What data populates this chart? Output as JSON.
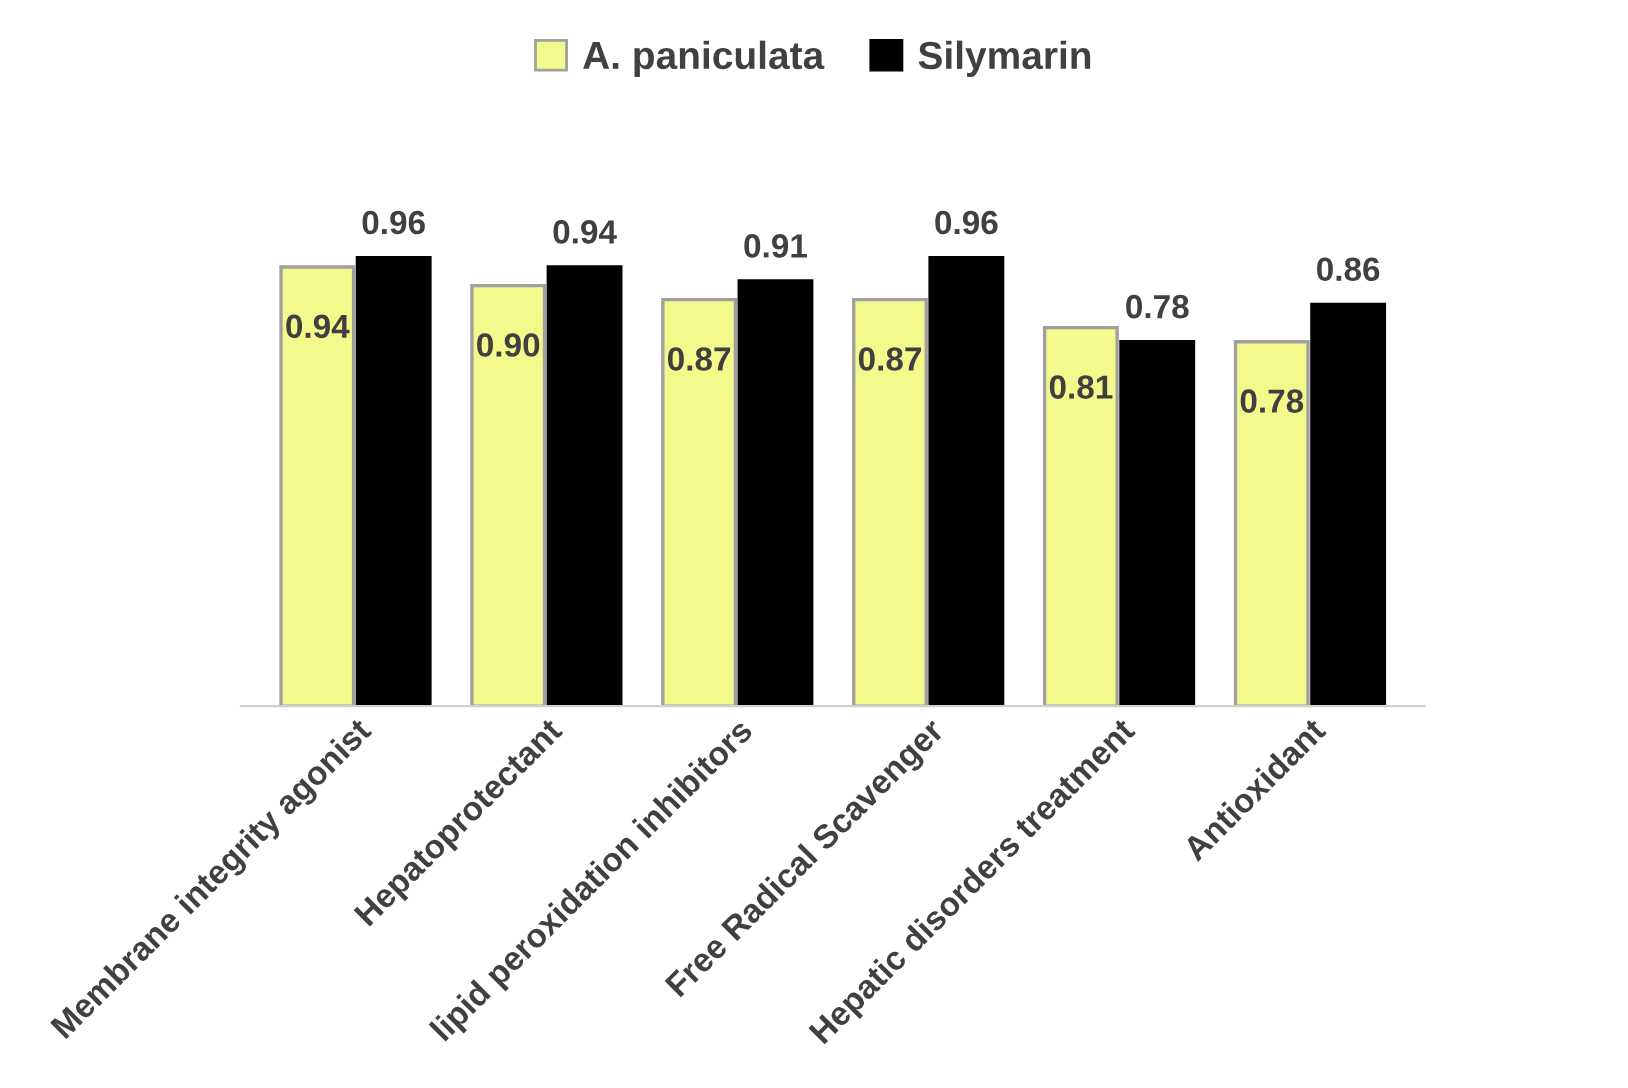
{
  "chart_data": {
    "type": "bar",
    "categories": [
      "Membrane integrity agonist",
      "Hepatoprotectant",
      "lipid peroxidation inhibitors",
      "Free Radical Scavenger",
      "Hepatic disorders treatment",
      "Antioxidant"
    ],
    "series": [
      {
        "name": "A. paniculata",
        "color": "#f4f98c",
        "values": [
          0.94,
          0.9,
          0.87,
          0.87,
          0.81,
          0.78
        ],
        "value_labels": [
          "0.94",
          "0.90",
          "0.87",
          "0.87",
          "0.81",
          "0.78"
        ]
      },
      {
        "name": "Silymarin",
        "color": "#000000",
        "values": [
          0.96,
          0.94,
          0.91,
          0.96,
          0.78,
          0.86
        ],
        "value_labels": [
          "0.96",
          "0.94",
          "0.91",
          "0.96",
          "0.78",
          "0.86"
        ]
      }
    ],
    "legend": "top",
    "tick_labels": "x",
    "grid": false
  }
}
